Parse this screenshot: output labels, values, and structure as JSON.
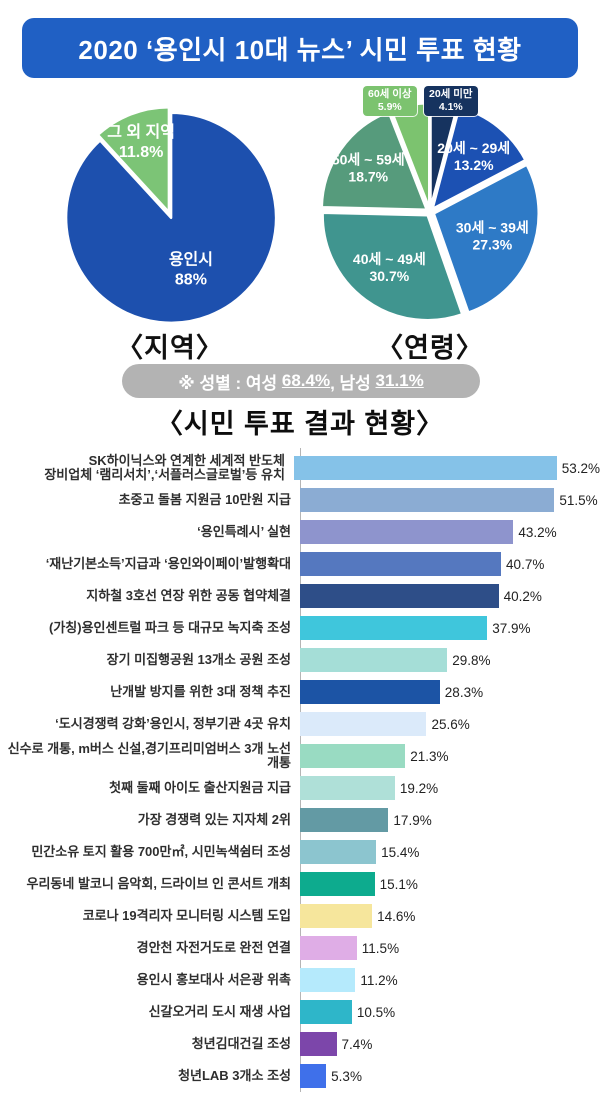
{
  "header": {
    "title": "2020 ‘용인시 10대 뉴스’ 시민 투표 현황"
  },
  "gender_note": {
    "prefix": "※ 성별 : 여성 ",
    "female": "68.4%",
    "separator": ", 남성 ",
    "male": "31.1%"
  },
  "colors": {
    "banner": "#2060c4",
    "pill": "#b3b3b3",
    "axis": "#b5b5b5",
    "region_main": "#1d50ae",
    "region_other": "#7cc476"
  },
  "chart_data": [
    {
      "type": "pie",
      "name": "region",
      "caption": "〈지역〉",
      "legend_position": "none",
      "slices": [
        {
          "label": "용인시",
          "value": 88,
          "display": "88%",
          "color": "#1d50ae"
        },
        {
          "label": "그 외 지역",
          "value": 11.8,
          "display": "11.8%",
          "color": "#7cc476"
        }
      ]
    },
    {
      "type": "pie",
      "name": "age",
      "caption": "〈연령〉",
      "legend_position": "none",
      "slices": [
        {
          "label": "20세 미만",
          "value": 4.1,
          "display": "4.1%",
          "color": "#16335f",
          "label_outside": true
        },
        {
          "label": "20세 ~ 29세",
          "value": 13.2,
          "display": "13.2%",
          "color": "#1c51b3"
        },
        {
          "label": "30세 ~ 39세",
          "value": 27.3,
          "display": "27.3%",
          "color": "#2e7ac6"
        },
        {
          "label": "40세 ~ 49세",
          "value": 30.7,
          "display": "30.7%",
          "color": "#40958f"
        },
        {
          "label": "50세 ~ 59세",
          "value": 18.7,
          "display": "18.7%",
          "color": "#569b7c"
        },
        {
          "label": "60세 이상",
          "value": 5.9,
          "display": "5.9%",
          "color": "#7cc36f",
          "label_outside": true
        }
      ]
    },
    {
      "type": "bar",
      "orientation": "horizontal",
      "title": "〈시민 투표 결과 현황〉",
      "xlim": [
        0,
        56
      ],
      "grid": false,
      "items": [
        {
          "label": "SK하이닉스와 연계한 세계적 반도체\n장비업체 ‘램리서치’,‘서플러스글로벌’등 유치",
          "value": 53.2,
          "display": "53.2%",
          "color": "#85c2e8"
        },
        {
          "label": "초중고 돌봄 지원금 10만원 지급",
          "value": 51.5,
          "display": "51.5%",
          "color": "#8bacd3"
        },
        {
          "label": "‘용인특례시’ 실현",
          "value": 43.2,
          "display": "43.2%",
          "color": "#8e94cd"
        },
        {
          "label": "‘재난기본소득’지급과 ‘용인와이페이’발행확대",
          "value": 40.7,
          "display": "40.7%",
          "color": "#5578bf"
        },
        {
          "label": "지하철 3호선 연장 위한 공동 협약체결",
          "value": 40.2,
          "display": "40.2%",
          "color": "#2e4e88"
        },
        {
          "label": "(가칭)용인센트럴 파크 등 대규모 녹지축 조성",
          "value": 37.9,
          "display": "37.9%",
          "color": "#3fc6dc"
        },
        {
          "label": "장기 미집행공원 13개소 공원 조성",
          "value": 29.8,
          "display": "29.8%",
          "color": "#a5ded7"
        },
        {
          "label": "난개발 방지를 위한 3대 정책 추진",
          "value": 28.3,
          "display": "28.3%",
          "color": "#1c54a5"
        },
        {
          "label": "‘도시경쟁력 강화’용인시, 정부기관 4곳 유치",
          "value": 25.6,
          "display": "25.6%",
          "color": "#dbeafa"
        },
        {
          "label": "신수로 개통, m버스 신설,경기프리미엄버스 3개 노선 개통",
          "value": 21.3,
          "display": "21.3%",
          "color": "#99dbc2"
        },
        {
          "label": "첫째 둘째 아이도 출산지원금 지급",
          "value": 19.2,
          "display": "19.2%",
          "color": "#afe0d8"
        },
        {
          "label": "가장 경쟁력 있는 지자체 2위",
          "value": 17.9,
          "display": "17.9%",
          "color": "#639aa4"
        },
        {
          "label": "민간소유 토지 활용 700만㎡, 시민녹색쉼터 조성",
          "value": 15.4,
          "display": "15.4%",
          "color": "#8cc5cf"
        },
        {
          "label": "우리동네 발코니 음악회, 드라이브 인 콘서트 개최",
          "value": 15.1,
          "display": "15.1%",
          "color": "#0dab8e"
        },
        {
          "label": "코로나 19격리자 모니터링 시스템 도입",
          "value": 14.6,
          "display": "14.6%",
          "color": "#f6e69c"
        },
        {
          "label": "경안천 자전거도로 완전 연결",
          "value": 11.5,
          "display": "11.5%",
          "color": "#dfade6"
        },
        {
          "label": "용인시 홍보대사 서은광 위촉",
          "value": 11.2,
          "display": "11.2%",
          "color": "#b5eafc"
        },
        {
          "label": "신갈오거리 도시 재생 사업",
          "value": 10.5,
          "display": "10.5%",
          "color": "#2eb6c9"
        },
        {
          "label": "청년김대건길 조성",
          "value": 7.4,
          "display": "7.4%",
          "color": "#7c46aa"
        },
        {
          "label": "청년LAB 3개소 조성",
          "value": 5.3,
          "display": "5.3%",
          "color": "#3f70ea"
        }
      ]
    }
  ]
}
